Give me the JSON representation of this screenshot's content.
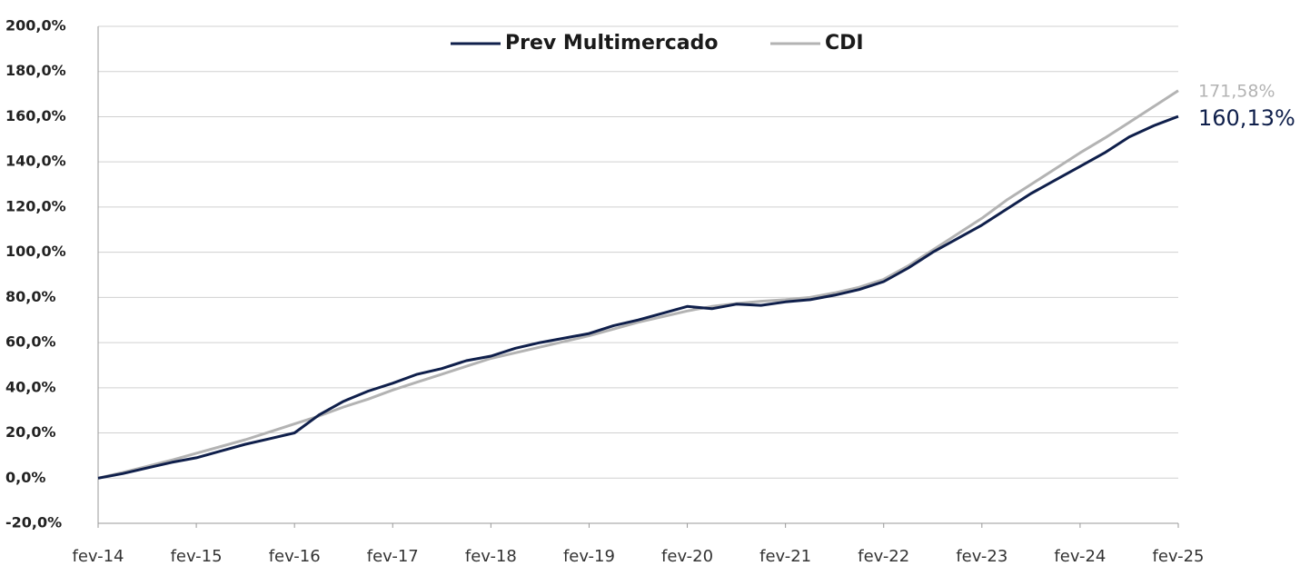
{
  "chart_data": {
    "type": "line",
    "categories": [
      "fev-14",
      null,
      null,
      null,
      "fev-15",
      null,
      null,
      null,
      "fev-16",
      null,
      null,
      null,
      "fev-17",
      null,
      null,
      null,
      "fev-18",
      null,
      null,
      null,
      "fev-19",
      null,
      null,
      null,
      "fev-20",
      null,
      null,
      null,
      "fev-21",
      null,
      null,
      null,
      "fev-22",
      null,
      null,
      null,
      "fev-23",
      null,
      null,
      null,
      "fev-24",
      null,
      null,
      null,
      "fev-25"
    ],
    "series": [
      {
        "name": "Prev Multimercado",
        "color": "#0f1f4b",
        "values": [
          0,
          2,
          4.5,
          7,
          9,
          12,
          15,
          17.5,
          20,
          28,
          34,
          38.5,
          42,
          46,
          48.5,
          52,
          54,
          57.5,
          60,
          62,
          64,
          67.5,
          70,
          73,
          76,
          75,
          77,
          76.5,
          78,
          79,
          81,
          83.5,
          87,
          93,
          100,
          106,
          112,
          119,
          126,
          132,
          138,
          144,
          151,
          156,
          160.13
        ],
        "value_labels": [
          null,
          null,
          null,
          null,
          null,
          null,
          null,
          null,
          null,
          null,
          null,
          null,
          null,
          null,
          null,
          null,
          null,
          null,
          null,
          null,
          null,
          null,
          null,
          null,
          null,
          null,
          null,
          null,
          null,
          null,
          null,
          null,
          null,
          null,
          null,
          null,
          null,
          null,
          null,
          null,
          null,
          null,
          null,
          null,
          "160,13%"
        ]
      },
      {
        "name": "CDI",
        "color": "#b3b3b3",
        "values": [
          0,
          2.5,
          5.2,
          8,
          11,
          14,
          17,
          20.5,
          24,
          27.5,
          31.5,
          35,
          39,
          42.5,
          46,
          49.5,
          53,
          55.5,
          58,
          60.5,
          63,
          66,
          69,
          71.5,
          74,
          76,
          77.3,
          78.3,
          79,
          80,
          82,
          84.5,
          88,
          94,
          101,
          108,
          115,
          123,
          130,
          137,
          144,
          150.5,
          157.5,
          164.5,
          171.58
        ],
        "value_labels": [
          null,
          null,
          null,
          null,
          null,
          null,
          null,
          null,
          null,
          null,
          null,
          null,
          null,
          null,
          null,
          null,
          null,
          null,
          null,
          null,
          null,
          null,
          null,
          null,
          null,
          null,
          null,
          null,
          null,
          null,
          null,
          null,
          null,
          null,
          null,
          null,
          null,
          null,
          null,
          null,
          null,
          null,
          null,
          null,
          "171,58%"
        ]
      }
    ],
    "ylim": [
      -20,
      200
    ],
    "yticks": [
      {
        "value": -20,
        "label": "-20,0%"
      },
      {
        "value": 0,
        "label": "0,0%"
      },
      {
        "value": 20,
        "label": "20,0%"
      },
      {
        "value": 40,
        "label": "40,0%"
      },
      {
        "value": 60,
        "label": "60,0%"
      },
      {
        "value": 80,
        "label": "80,0%"
      },
      {
        "value": 100,
        "label": "100,0%"
      },
      {
        "value": 120,
        "label": "120,0%"
      },
      {
        "value": 140,
        "label": "140,0%"
      },
      {
        "value": 160,
        "label": "160,0%"
      },
      {
        "value": 180,
        "label": "180,0%"
      },
      {
        "value": 200,
        "label": "200,0%"
      }
    ],
    "grid": true
  }
}
